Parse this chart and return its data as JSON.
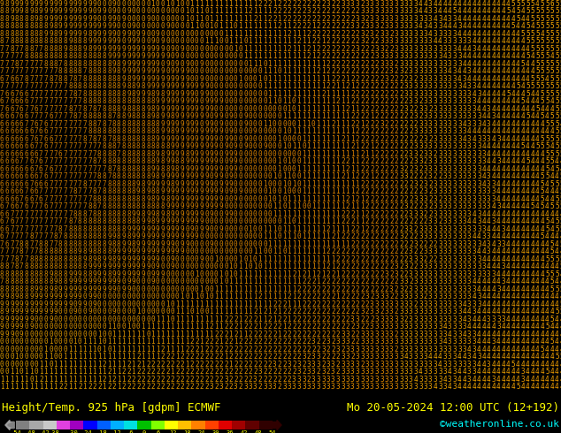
{
  "title_left": "Height/Temp. 925 hPa [gdpm] ECMWF",
  "title_right": "Mo 20-05-2024 12:00 UTC (12+192)",
  "credit": "©weatheronline.co.uk",
  "colorbar_tick_labels": [
    "-54",
    "-48",
    "-42",
    "-38",
    "-30",
    "-24",
    "-18",
    "-12",
    "-6",
    "0",
    "6",
    "12",
    "18",
    "24",
    "30",
    "36",
    "42",
    "48",
    "54"
  ],
  "colorbar_colors": [
    "#808080",
    "#a8a8a8",
    "#c8c8c8",
    "#e040e0",
    "#a000c0",
    "#0000ff",
    "#0060ff",
    "#00b0ff",
    "#00e0e0",
    "#00c000",
    "#80ff00",
    "#ffff00",
    "#ffc000",
    "#ff8000",
    "#ff4000",
    "#e00000",
    "#a00000",
    "#600000",
    "#300000"
  ],
  "bg_color": "#000000",
  "text_color": "#ffff00",
  "credit_color": "#00ffff",
  "map_digit_colors_warm": [
    "#ff8c00",
    "#ffa500",
    "#ffb800",
    "#ffd000",
    "#ffe040",
    "#cc7000"
  ],
  "map_digit_colors_cool": [
    "#cc6600",
    "#bb5500",
    "#aa4400"
  ],
  "map_bg": "#000000",
  "figwidth": 6.34,
  "figheight": 4.9,
  "dpi": 100
}
